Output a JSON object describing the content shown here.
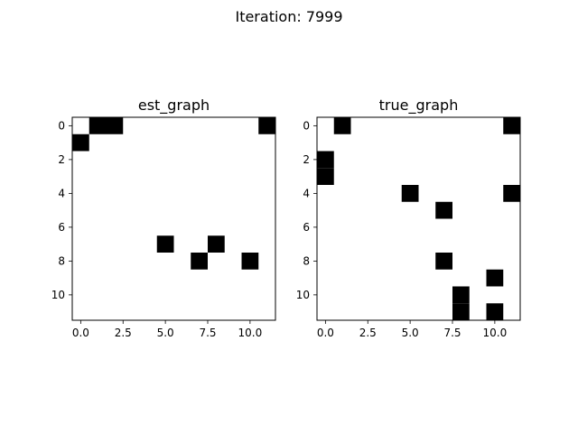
{
  "figure": {
    "suptitle": "Iteration: 7999"
  },
  "chart_data": [
    {
      "type": "heatmap",
      "title": "est_graph",
      "xlabel": "",
      "ylabel": "",
      "shape": [
        12,
        12
      ],
      "xlim": [
        -0.5,
        11.5
      ],
      "ylim": [
        11.5,
        -0.5
      ],
      "xticks": [
        0.0,
        2.5,
        5.0,
        7.5,
        10.0
      ],
      "xtick_labels": [
        "0.0",
        "2.5",
        "5.0",
        "7.5",
        "10.0"
      ],
      "yticks": [
        0,
        2,
        4,
        6,
        8,
        10
      ],
      "ytick_labels": [
        "0",
        "2",
        "4",
        "6",
        "8",
        "10"
      ],
      "colormap": "gray_r",
      "grid": false,
      "cells": [
        {
          "row": 0,
          "col": 1,
          "value": 1
        },
        {
          "row": 0,
          "col": 2,
          "value": 1
        },
        {
          "row": 0,
          "col": 11,
          "value": 1
        },
        {
          "row": 1,
          "col": 0,
          "value": 1
        },
        {
          "row": 7,
          "col": 5,
          "value": 1
        },
        {
          "row": 7,
          "col": 8,
          "value": 1
        },
        {
          "row": 8,
          "col": 7,
          "value": 1
        },
        {
          "row": 8,
          "col": 10,
          "value": 1
        }
      ]
    },
    {
      "type": "heatmap",
      "title": "true_graph",
      "xlabel": "",
      "ylabel": "",
      "shape": [
        12,
        12
      ],
      "xlim": [
        -0.5,
        11.5
      ],
      "ylim": [
        11.5,
        -0.5
      ],
      "xticks": [
        0.0,
        2.5,
        5.0,
        7.5,
        10.0
      ],
      "xtick_labels": [
        "0.0",
        "2.5",
        "5.0",
        "7.5",
        "10.0"
      ],
      "yticks": [
        0,
        2,
        4,
        6,
        8,
        10
      ],
      "ytick_labels": [
        "0",
        "2",
        "4",
        "6",
        "8",
        "10"
      ],
      "colormap": "gray_r",
      "grid": false,
      "cells": [
        {
          "row": 0,
          "col": 1,
          "value": 1
        },
        {
          "row": 0,
          "col": 11,
          "value": 1
        },
        {
          "row": 2,
          "col": 0,
          "value": 1
        },
        {
          "row": 3,
          "col": 0,
          "value": 1
        },
        {
          "row": 4,
          "col": 5,
          "value": 1
        },
        {
          "row": 4,
          "col": 11,
          "value": 1
        },
        {
          "row": 5,
          "col": 7,
          "value": 1
        },
        {
          "row": 8,
          "col": 7,
          "value": 1
        },
        {
          "row": 9,
          "col": 10,
          "value": 1
        },
        {
          "row": 10,
          "col": 8,
          "value": 1
        },
        {
          "row": 11,
          "col": 8,
          "value": 1
        },
        {
          "row": 11,
          "col": 10,
          "value": 1
        }
      ]
    }
  ]
}
